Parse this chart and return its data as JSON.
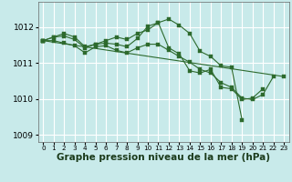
{
  "bg_color": "#c8eaea",
  "grid_color": "#ffffff",
  "line_color": "#2d6a2d",
  "marker_color": "#2d6a2d",
  "xlabel": "Graphe pression niveau de la mer (hPa)",
  "xlabel_fontsize": 7.5,
  "tick_fontsize": 6.5,
  "ylim": [
    1008.8,
    1012.7
  ],
  "xlim": [
    -0.5,
    23.5
  ],
  "yticks": [
    1009,
    1010,
    1011,
    1012
  ],
  "xticks": [
    0,
    1,
    2,
    3,
    4,
    5,
    6,
    7,
    8,
    9,
    10,
    11,
    12,
    13,
    14,
    15,
    16,
    17,
    18,
    19,
    20,
    21,
    22,
    23
  ],
  "series": [
    {
      "x": [
        0,
        1,
        2,
        3,
        4,
        5,
        6,
        7,
        8,
        9,
        10,
        11,
        12,
        13,
        14,
        15,
        16,
        17,
        18,
        19
      ],
      "y": [
        1011.62,
        1011.72,
        1011.82,
        1011.72,
        1011.45,
        1011.52,
        1011.62,
        1011.72,
        1011.65,
        1011.82,
        1011.92,
        1012.12,
        1012.22,
        1012.05,
        1011.82,
        1011.32,
        1011.18,
        1010.92,
        1010.88,
        1009.42
      ]
    },
    {
      "x": [
        0,
        1,
        2,
        3,
        4,
        5,
        6,
        7,
        8,
        9,
        10,
        11,
        12,
        13,
        14,
        15,
        16,
        17,
        18,
        19,
        20,
        21
      ],
      "y": [
        1011.62,
        1011.72,
        1011.75,
        1011.65,
        1011.42,
        1011.52,
        1011.55,
        1011.52,
        1011.45,
        1011.68,
        1012.02,
        1012.12,
        1011.42,
        1011.25,
        1010.78,
        1010.72,
        1010.82,
        1010.32,
        1010.28,
        1009.98,
        1010.02,
        1010.28
      ]
    },
    {
      "x": [
        0,
        1,
        2,
        3,
        4,
        5,
        6,
        7,
        8,
        9,
        10,
        11,
        12,
        13,
        14,
        15,
        16,
        17,
        18,
        19,
        20,
        21,
        22
      ],
      "y": [
        1011.62,
        1011.62,
        1011.55,
        1011.48,
        1011.28,
        1011.45,
        1011.48,
        1011.35,
        1011.28,
        1011.42,
        1011.52,
        1011.52,
        1011.35,
        1011.18,
        1011.02,
        1010.82,
        1010.72,
        1010.45,
        1010.32,
        1010.02,
        1009.98,
        1010.12,
        1010.62
      ]
    },
    {
      "x": [
        0,
        23
      ],
      "y": [
        1011.62,
        1010.62
      ]
    }
  ]
}
